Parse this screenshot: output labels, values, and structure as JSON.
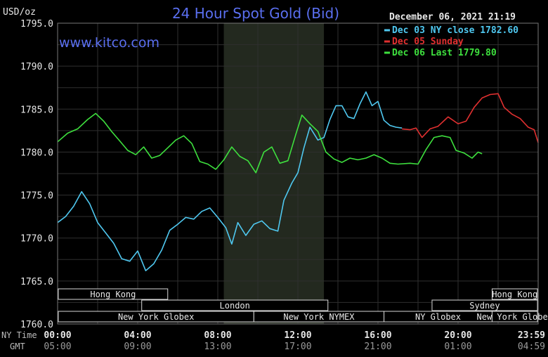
{
  "header": {
    "unit_label": "USD/oz",
    "title": "24 Hour Spot Gold (Bid)",
    "timestamp": "December 06, 2021 21:19",
    "watermark": "www.kitco.com"
  },
  "legend": [
    {
      "label": "Dec 03 NY close 1782.60",
      "color": "#4fc8f0"
    },
    {
      "label": "Dec 05 Sunday",
      "color": "#e03030"
    },
    {
      "label": "Dec 06 Last 1779.80",
      "color": "#3ee03e"
    }
  ],
  "axis": {
    "row_label_ny": "NY Time",
    "row_label_gmt": "GMT",
    "ny_ticks": [
      "00:00",
      "04:00",
      "08:00",
      "12:00",
      "16:00",
      "20:00",
      "23:59"
    ],
    "gmt_ticks": [
      "05:00",
      "09:00",
      "13:00",
      "17:00",
      "21:00",
      "01:00",
      "04:59"
    ]
  },
  "sessions": [
    {
      "label": "Hong Kong"
    },
    {
      "label": "London"
    },
    {
      "label": "New York Globex"
    },
    {
      "label": "New York NYMEX"
    },
    {
      "label": "NY Globex"
    },
    {
      "label": "Hong Kong"
    },
    {
      "label": "Sydney"
    },
    {
      "label": "New York Globex"
    }
  ],
  "chart_data": {
    "type": "line",
    "title": "24 Hour Spot Gold (Bid)",
    "ylabel": "USD/oz",
    "xlabel": "NY Time",
    "ylim": [
      1760.0,
      1795.0
    ],
    "xlim": [
      0,
      24
    ],
    "y_ticks": [
      "1795.0",
      "1790.0",
      "1785.0",
      "1780.0",
      "1775.0",
      "1770.0",
      "1765.0",
      "1760.0"
    ],
    "x_tick_labels": [
      "00:00",
      "04:00",
      "08:00",
      "12:00",
      "16:00",
      "20:00",
      "23:59"
    ],
    "grid": true,
    "legend_position": "top-right",
    "shaded_region_hours": [
      8.3,
      13.3
    ],
    "series": [
      {
        "name": "Dec 03 NY close 1782.60",
        "color": "#4fc8f0",
        "points": [
          [
            0.0,
            1771.8
          ],
          [
            0.4,
            1772.5
          ],
          [
            0.8,
            1773.7
          ],
          [
            1.2,
            1775.4
          ],
          [
            1.6,
            1774.0
          ],
          [
            2.0,
            1771.8
          ],
          [
            2.4,
            1770.6
          ],
          [
            2.8,
            1769.4
          ],
          [
            3.2,
            1767.6
          ],
          [
            3.6,
            1767.3
          ],
          [
            4.0,
            1768.5
          ],
          [
            4.4,
            1766.2
          ],
          [
            4.8,
            1767.0
          ],
          [
            5.2,
            1768.6
          ],
          [
            5.6,
            1770.9
          ],
          [
            6.0,
            1771.6
          ],
          [
            6.4,
            1772.4
          ],
          [
            6.8,
            1772.2
          ],
          [
            7.2,
            1773.1
          ],
          [
            7.6,
            1773.5
          ],
          [
            8.0,
            1772.4
          ],
          [
            8.4,
            1771.2
          ],
          [
            8.7,
            1769.3
          ],
          [
            9.0,
            1771.8
          ],
          [
            9.4,
            1770.3
          ],
          [
            9.8,
            1771.6
          ],
          [
            10.2,
            1772.0
          ],
          [
            10.6,
            1771.1
          ],
          [
            11.0,
            1770.8
          ],
          [
            11.3,
            1774.4
          ],
          [
            11.7,
            1776.4
          ],
          [
            12.0,
            1777.6
          ],
          [
            12.3,
            1780.5
          ],
          [
            12.6,
            1782.9
          ],
          [
            13.0,
            1781.4
          ],
          [
            13.3,
            1781.7
          ],
          [
            13.6,
            1783.8
          ],
          [
            13.9,
            1785.4
          ],
          [
            14.2,
            1785.4
          ],
          [
            14.5,
            1784.1
          ],
          [
            14.8,
            1783.9
          ],
          [
            15.1,
            1785.6
          ],
          [
            15.4,
            1787.0
          ],
          [
            15.7,
            1785.4
          ],
          [
            16.0,
            1785.9
          ],
          [
            16.3,
            1783.7
          ],
          [
            16.6,
            1783.1
          ],
          [
            16.9,
            1782.9
          ],
          [
            17.2,
            1782.8
          ]
        ]
      },
      {
        "name": "Dec 05 Sunday",
        "color": "#e03030",
        "points": [
          [
            17.2,
            1782.7
          ],
          [
            17.6,
            1782.6
          ],
          [
            17.9,
            1782.8
          ],
          [
            18.2,
            1781.7
          ],
          [
            18.6,
            1782.7
          ],
          [
            19.0,
            1783.0
          ],
          [
            19.5,
            1784.1
          ],
          [
            20.0,
            1783.3
          ],
          [
            20.4,
            1783.6
          ],
          [
            20.8,
            1785.2
          ],
          [
            21.2,
            1786.3
          ],
          [
            21.6,
            1786.7
          ],
          [
            22.0,
            1786.8
          ],
          [
            22.3,
            1785.2
          ],
          [
            22.7,
            1784.4
          ],
          [
            23.1,
            1783.9
          ],
          [
            23.5,
            1782.9
          ],
          [
            23.8,
            1782.6
          ],
          [
            24.0,
            1781.1
          ]
        ]
      },
      {
        "name": "Dec 06 Last 1779.80",
        "color": "#3ee03e",
        "points": [
          [
            0.0,
            1781.2
          ],
          [
            0.5,
            1782.2
          ],
          [
            1.0,
            1782.7
          ],
          [
            1.5,
            1783.8
          ],
          [
            1.9,
            1784.5
          ],
          [
            2.3,
            1783.6
          ],
          [
            2.7,
            1782.4
          ],
          [
            3.1,
            1781.3
          ],
          [
            3.5,
            1780.2
          ],
          [
            3.9,
            1779.7
          ],
          [
            4.3,
            1780.6
          ],
          [
            4.7,
            1779.3
          ],
          [
            5.1,
            1779.6
          ],
          [
            5.5,
            1780.5
          ],
          [
            5.9,
            1781.4
          ],
          [
            6.3,
            1781.9
          ],
          [
            6.7,
            1781.0
          ],
          [
            7.1,
            1778.9
          ],
          [
            7.5,
            1778.6
          ],
          [
            7.9,
            1778.0
          ],
          [
            8.3,
            1779.1
          ],
          [
            8.7,
            1780.6
          ],
          [
            9.1,
            1779.5
          ],
          [
            9.5,
            1779.0
          ],
          [
            9.9,
            1777.6
          ],
          [
            10.3,
            1780.0
          ],
          [
            10.7,
            1780.6
          ],
          [
            11.1,
            1778.7
          ],
          [
            11.5,
            1779.0
          ],
          [
            11.9,
            1782.1
          ],
          [
            12.2,
            1784.3
          ],
          [
            12.6,
            1783.3
          ],
          [
            13.0,
            1782.4
          ],
          [
            13.4,
            1780.0
          ],
          [
            13.8,
            1779.2
          ],
          [
            14.2,
            1778.8
          ],
          [
            14.6,
            1779.3
          ],
          [
            15.0,
            1779.1
          ],
          [
            15.4,
            1779.3
          ],
          [
            15.8,
            1779.7
          ],
          [
            16.2,
            1779.3
          ],
          [
            16.6,
            1778.7
          ],
          [
            17.0,
            1778.6
          ],
          [
            17.6,
            1778.7
          ],
          [
            18.0,
            1778.6
          ],
          [
            18.4,
            1780.3
          ],
          [
            18.8,
            1781.7
          ],
          [
            19.2,
            1781.9
          ],
          [
            19.6,
            1781.7
          ],
          [
            19.9,
            1780.2
          ],
          [
            20.3,
            1779.9
          ],
          [
            20.7,
            1779.3
          ],
          [
            21.0,
            1780.0
          ],
          [
            21.2,
            1779.8
          ]
        ]
      }
    ]
  }
}
